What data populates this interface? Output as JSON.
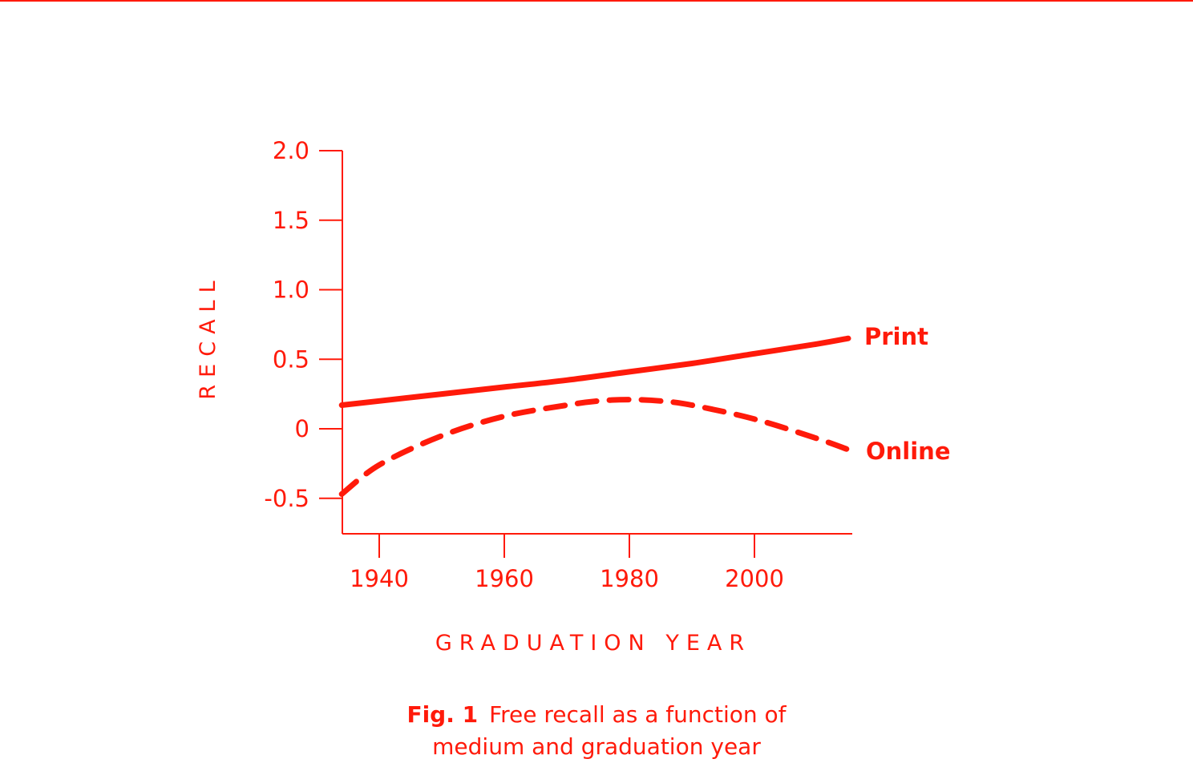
{
  "colors": {
    "accent": "#ff1a0a"
  },
  "chart_data": {
    "type": "line",
    "xlabel": "GRADUATION YEAR",
    "ylabel": "RECALL",
    "xlim": [
      1934,
      2015
    ],
    "ylim": [
      -0.75,
      2.0
    ],
    "xticks": [
      1940,
      1960,
      1980,
      2000
    ],
    "xtick_labels": [
      "1940",
      "1960",
      "1980",
      "2000"
    ],
    "yticks": [
      2.0,
      1.5,
      1.0,
      0.5,
      0,
      -0.5
    ],
    "ytick_labels": [
      "2.0",
      "1.5",
      "1.0",
      "0.5",
      "0",
      "-0.5"
    ],
    "grid": false,
    "legend": "direct labels at right end of lines",
    "series": [
      {
        "name": "Print",
        "style": "solid",
        "x": [
          1934,
          1940,
          1950,
          1960,
          1970,
          1980,
          1990,
          2000,
          2010,
          2015
        ],
        "y": [
          0.17,
          0.2,
          0.25,
          0.3,
          0.35,
          0.41,
          0.47,
          0.54,
          0.61,
          0.65
        ]
      },
      {
        "name": "Online",
        "style": "dashed",
        "x": [
          1934,
          1940,
          1950,
          1960,
          1970,
          1975,
          1980,
          1985,
          1990,
          2000,
          2010,
          2015
        ],
        "y": [
          -0.47,
          -0.26,
          -0.05,
          0.09,
          0.17,
          0.2,
          0.21,
          0.2,
          0.17,
          0.07,
          -0.07,
          -0.15
        ]
      }
    ]
  },
  "caption": {
    "fig_label": "Fig. 1",
    "text_line1": "Free recall as a function of",
    "text_line2": "medium and graduation year"
  }
}
